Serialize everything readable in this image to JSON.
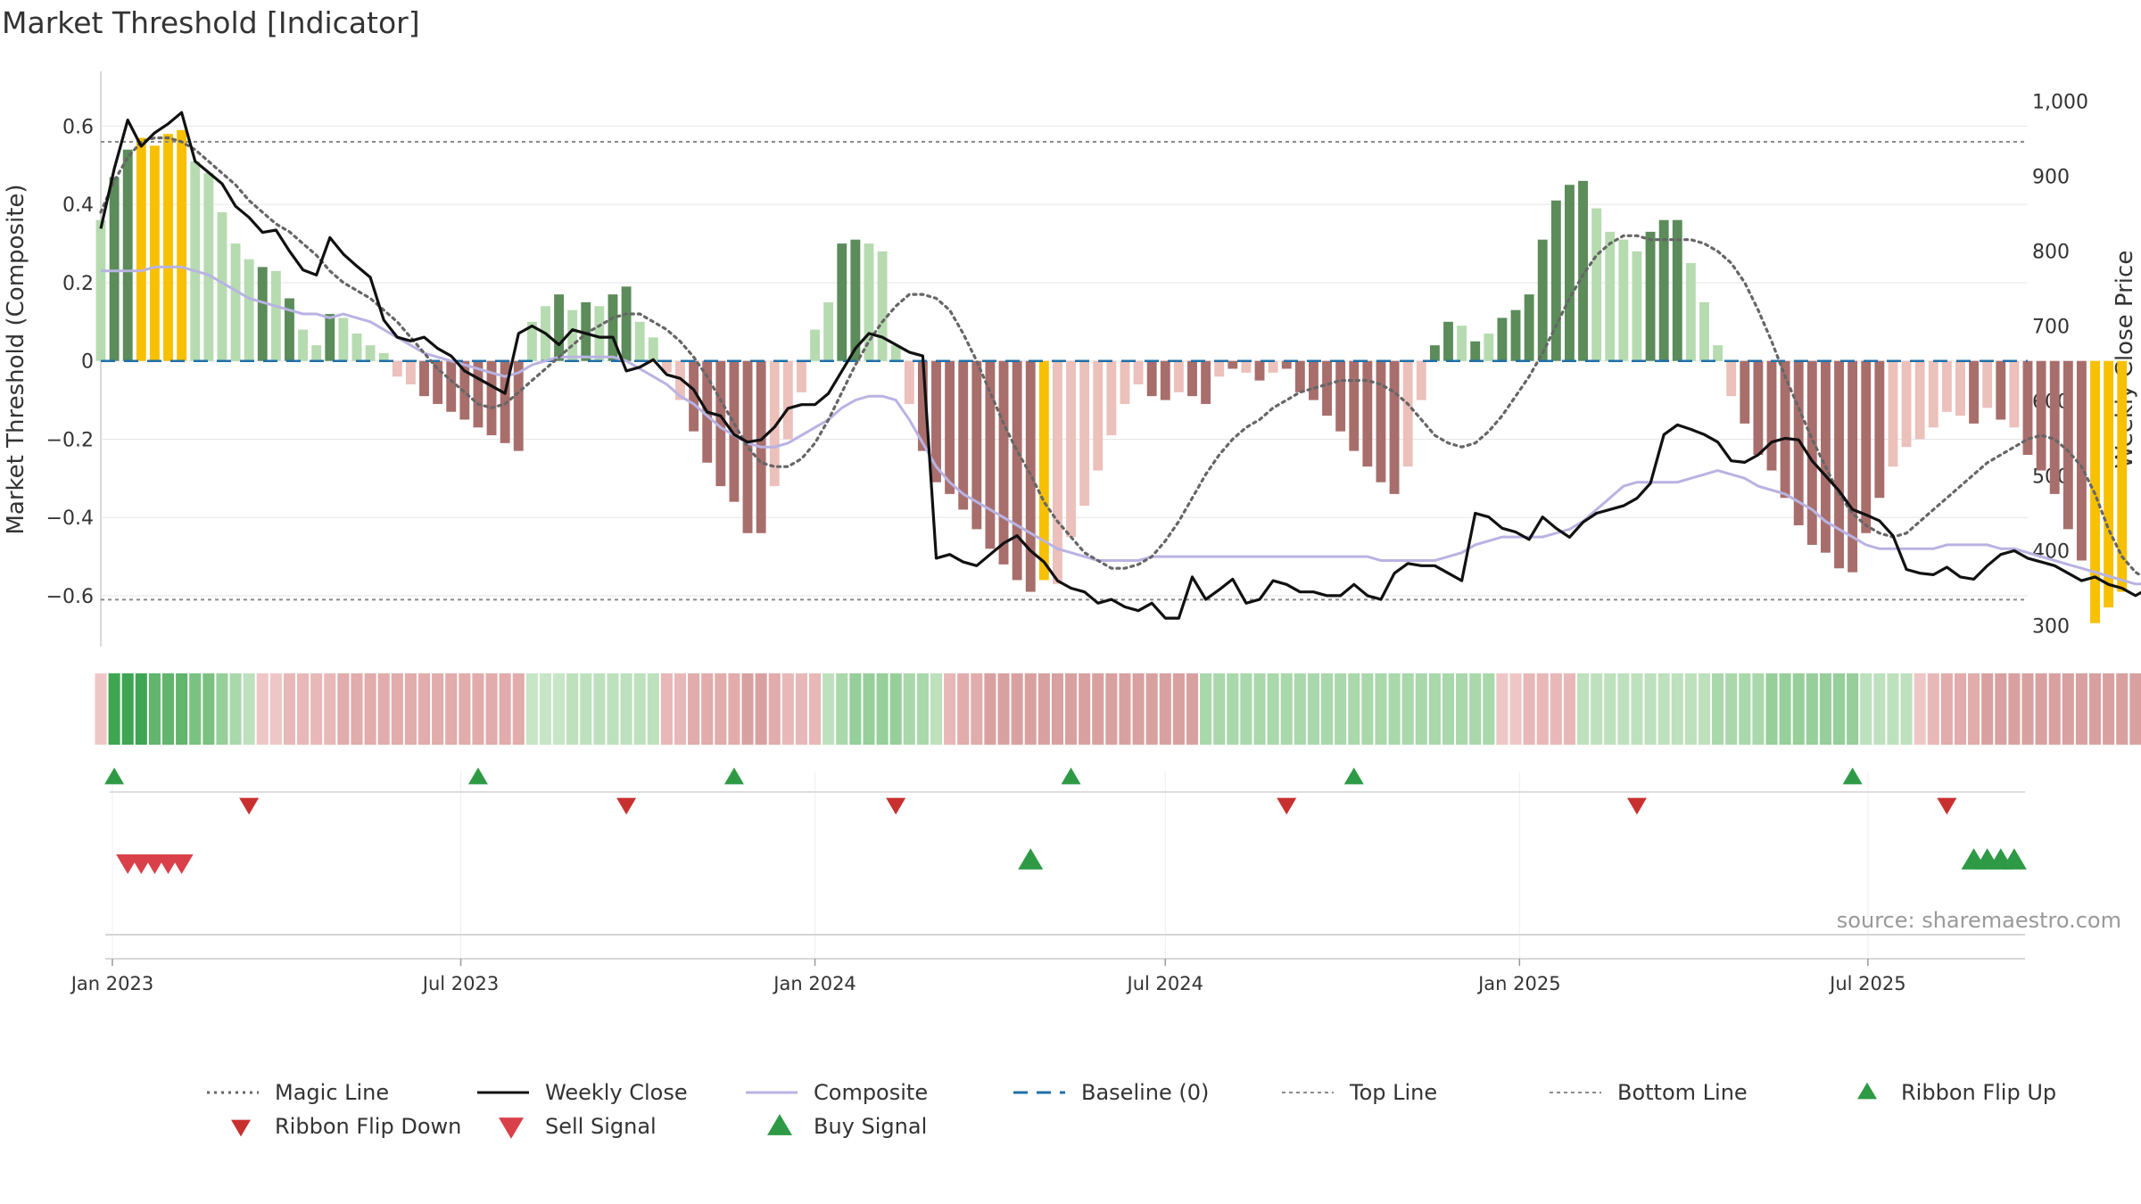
{
  "title": "Market Threshold [Indicator]",
  "source": "source: sharemaestro.com",
  "colors": {
    "bar_strong_up": "#5b8c5a",
    "bar_weak_up": "#b6dbb0",
    "bar_strong_down": "#a86e6c",
    "bar_weak_down": "#ecc0bb",
    "bar_extreme": "#f7c000",
    "magic": "#666666",
    "close": "#111111",
    "composite": "#b9b3e3",
    "baseline": "#1f6fa8",
    "buy": "#2e9a46",
    "sell": "#d9404a",
    "flip_up": "#2e9a46",
    "flip_down": "#c8302f"
  },
  "chart_data": {
    "type": "bar",
    "xlim": [
      "2022-12-26",
      "2025-09-22"
    ],
    "x_ticks": [
      "Jan 2023",
      "Jul 2023",
      "Jan 2024",
      "Jul 2024",
      "Jan 2025",
      "Jul 2025"
    ],
    "ylabel": "Market Threshold (Composite)",
    "y2label": "Weekly Close Price",
    "ylim": [
      -0.73,
      0.74
    ],
    "y_ticks": [
      0.6,
      0.4,
      0.2,
      0,
      -0.2,
      -0.4,
      -0.6
    ],
    "y2lim": [
      272,
      1040
    ],
    "y2_ticks": [
      300,
      400,
      500,
      600,
      700,
      800,
      900,
      1000
    ],
    "y2_tick_labels": [
      "300",
      "400",
      "500",
      "600",
      "700",
      "800",
      "900",
      "1,000"
    ],
    "top_line": 0.56,
    "bottom_line": -0.61,
    "composite_bars": [
      0.36,
      0.47,
      0.54,
      0.57,
      0.55,
      0.58,
      0.59,
      0.51,
      0.48,
      0.38,
      0.3,
      0.26,
      0.24,
      0.23,
      0.16,
      0.08,
      0.04,
      0.12,
      0.11,
      0.07,
      0.04,
      0.02,
      -0.04,
      -0.06,
      -0.09,
      -0.11,
      -0.13,
      -0.15,
      -0.17,
      -0.19,
      -0.21,
      -0.23,
      0.1,
      0.14,
      0.17,
      0.13,
      0.15,
      0.14,
      0.17,
      0.19,
      0.1,
      0.06,
      -0.03,
      -0.1,
      -0.18,
      -0.26,
      -0.32,
      -0.36,
      -0.44,
      -0.44,
      -0.32,
      -0.2,
      -0.08,
      0.08,
      0.15,
      0.3,
      0.31,
      0.3,
      0.28,
      0.04,
      -0.11,
      -0.23,
      -0.31,
      -0.34,
      -0.38,
      -0.43,
      -0.48,
      -0.52,
      -0.56,
      -0.59,
      -0.56,
      -0.57,
      -0.45,
      -0.37,
      -0.28,
      -0.19,
      -0.11,
      -0.06,
      -0.09,
      -0.1,
      -0.08,
      -0.09,
      -0.11,
      -0.04,
      -0.02,
      -0.03,
      -0.05,
      -0.03,
      -0.02,
      -0.08,
      -0.1,
      -0.14,
      -0.18,
      -0.23,
      -0.27,
      -0.31,
      -0.34,
      -0.27,
      -0.1,
      0.04,
      0.1,
      0.09,
      0.05,
      0.07,
      0.11,
      0.13,
      0.17,
      0.31,
      0.41,
      0.45,
      0.46,
      0.39,
      0.33,
      0.31,
      0.28,
      0.33,
      0.36,
      0.36,
      0.25,
      0.15,
      0.04,
      -0.09,
      -0.16,
      -0.24,
      -0.28,
      -0.35,
      -0.42,
      -0.47,
      -0.49,
      -0.53,
      -0.54,
      -0.44,
      -0.35,
      -0.27,
      -0.22,
      -0.2,
      -0.17,
      -0.13,
      -0.14,
      -0.16,
      -0.12,
      -0.15,
      -0.17,
      -0.24,
      -0.28,
      -0.34,
      -0.43,
      -0.51,
      -0.67,
      -0.63,
      -0.59
    ],
    "bar_categories": [
      "sw",
      "su",
      "su",
      "x",
      "x",
      "x",
      "x",
      "wu",
      "wu",
      "wu",
      "wu",
      "wu",
      "su",
      "wu",
      "su",
      "wu",
      "wu",
      "su",
      "wu",
      "wu",
      "wu",
      "wu",
      "wd",
      "wd",
      "sd",
      "sd",
      "sd",
      "sd",
      "sd",
      "sd",
      "sd",
      "sd",
      "wu",
      "wu",
      "su",
      "wu",
      "su",
      "wu",
      "su",
      "su",
      "wu",
      "wu",
      "wd",
      "wd",
      "sd",
      "sd",
      "sd",
      "sd",
      "sd",
      "sd",
      "wd",
      "wd",
      "wd",
      "wu",
      "wu",
      "su",
      "su",
      "wu",
      "wu",
      "wu",
      "wd",
      "sd",
      "sd",
      "sd",
      "sd",
      "sd",
      "sd",
      "sd",
      "sd",
      "sd",
      "x",
      "wd",
      "wd",
      "wd",
      "wd",
      "wd",
      "wd",
      "wd",
      "sd",
      "sd",
      "wd",
      "sd",
      "sd",
      "wd",
      "sd",
      "wd",
      "sd",
      "wd",
      "sd",
      "sd",
      "sd",
      "sd",
      "sd",
      "sd",
      "sd",
      "sd",
      "sd",
      "wd",
      "wd",
      "su",
      "su",
      "wu",
      "su",
      "wu",
      "su",
      "su",
      "su",
      "su",
      "su",
      "su",
      "su",
      "wu",
      "wu",
      "wu",
      "wu",
      "su",
      "su",
      "su",
      "wu",
      "wu",
      "wu",
      "wd",
      "sd",
      "sd",
      "sd",
      "sd",
      "sd",
      "sd",
      "sd",
      "sd",
      "sd",
      "sd",
      "sd",
      "wd",
      "wd",
      "wd",
      "wd",
      "wd",
      "wd",
      "sd",
      "wd",
      "sd",
      "wd",
      "sd",
      "sd",
      "sd",
      "sd",
      "sd",
      "x",
      "x",
      "x"
    ],
    "weekly_close": [
      830,
      910,
      975,
      940,
      958,
      970,
      985,
      920,
      905,
      890,
      860,
      845,
      825,
      828,
      800,
      775,
      768,
      818,
      796,
      780,
      765,
      708,
      685,
      680,
      685,
      670,
      660,
      640,
      630,
      620,
      610,
      690,
      700,
      690,
      675,
      695,
      690,
      685,
      685,
      640,
      645,
      655,
      635,
      630,
      615,
      585,
      580,
      555,
      545,
      548,
      565,
      590,
      595,
      595,
      610,
      640,
      670,
      690,
      685,
      675,
      665,
      660,
      390,
      395,
      385,
      380,
      395,
      410,
      420,
      400,
      385,
      360,
      350,
      345,
      330,
      335,
      325,
      320,
      330,
      310,
      310,
      365,
      335,
      348,
      362,
      330,
      335,
      360,
      355,
      345,
      345,
      340,
      340,
      355,
      340,
      335,
      370,
      383,
      380,
      380,
      370,
      360,
      450,
      445,
      430,
      425,
      415,
      445,
      430,
      418,
      438,
      450,
      455,
      460,
      470,
      490,
      555,
      568,
      562,
      555,
      545,
      520,
      518,
      528,
      545,
      550,
      548,
      520,
      500,
      480,
      455,
      448,
      440,
      420,
      375,
      370,
      368,
      378,
      365,
      362,
      380,
      395,
      400,
      390,
      385,
      380,
      370,
      360,
      365,
      355,
      350,
      340,
      350,
      342,
      335,
      350,
      345
    ]
  },
  "composite_line": [
    0.23,
    0.23,
    0.23,
    0.23,
    0.24,
    0.24,
    0.24,
    0.23,
    0.22,
    0.2,
    0.18,
    0.16,
    0.15,
    0.14,
    0.13,
    0.12,
    0.12,
    0.11,
    0.12,
    0.11,
    0.1,
    0.08,
    0.06,
    0.04,
    0.02,
    0.01,
    0.0,
    -0.01,
    -0.02,
    -0.03,
    -0.04,
    -0.03,
    -0.01,
    0.0,
    0.01,
    0.01,
    0.01,
    0.01,
    0.01,
    0.0,
    -0.02,
    -0.04,
    -0.06,
    -0.09,
    -0.11,
    -0.14,
    -0.17,
    -0.19,
    -0.21,
    -0.22,
    -0.22,
    -0.21,
    -0.19,
    -0.17,
    -0.15,
    -0.12,
    -0.1,
    -0.09,
    -0.09,
    -0.1,
    -0.15,
    -0.21,
    -0.27,
    -0.31,
    -0.34,
    -0.36,
    -0.38,
    -0.4,
    -0.42,
    -0.44,
    -0.46,
    -0.48,
    -0.49,
    -0.5,
    -0.51,
    -0.51,
    -0.51,
    -0.51,
    -0.5,
    -0.5,
    -0.5,
    -0.5,
    -0.5,
    -0.5,
    -0.5,
    -0.5,
    -0.5,
    -0.5,
    -0.5,
    -0.5,
    -0.5,
    -0.5,
    -0.5,
    -0.5,
    -0.5,
    -0.51,
    -0.51,
    -0.51,
    -0.51,
    -0.51,
    -0.5,
    -0.49,
    -0.47,
    -0.46,
    -0.45,
    -0.45,
    -0.45,
    -0.45,
    -0.44,
    -0.43,
    -0.41,
    -0.38,
    -0.35,
    -0.32,
    -0.31,
    -0.31,
    -0.31,
    -0.31,
    -0.3,
    -0.29,
    -0.28,
    -0.29,
    -0.3,
    -0.32,
    -0.33,
    -0.34,
    -0.36,
    -0.38,
    -0.41,
    -0.43,
    -0.45,
    -0.47,
    -0.48,
    -0.48,
    -0.48,
    -0.48,
    -0.48,
    -0.47,
    -0.47,
    -0.47,
    -0.47,
    -0.48,
    -0.48,
    -0.49,
    -0.5,
    -0.51,
    -0.52,
    -0.53,
    -0.54,
    -0.55,
    -0.56,
    -0.57,
    -0.57,
    -0.57,
    -0.57
  ],
  "magic_line": [
    0.38,
    0.46,
    0.52,
    0.56,
    0.57,
    0.57,
    0.56,
    0.54,
    0.51,
    0.48,
    0.45,
    0.41,
    0.38,
    0.35,
    0.33,
    0.3,
    0.27,
    0.23,
    0.2,
    0.18,
    0.16,
    0.13,
    0.1,
    0.06,
    0.02,
    -0.02,
    -0.05,
    -0.08,
    -0.11,
    -0.12,
    -0.11,
    -0.08,
    -0.05,
    -0.02,
    0.01,
    0.04,
    0.07,
    0.09,
    0.11,
    0.12,
    0.12,
    0.1,
    0.08,
    0.05,
    0.01,
    -0.04,
    -0.1,
    -0.16,
    -0.22,
    -0.26,
    -0.27,
    -0.27,
    -0.25,
    -0.21,
    -0.15,
    -0.08,
    -0.01,
    0.05,
    0.1,
    0.14,
    0.17,
    0.17,
    0.16,
    0.13,
    0.07,
    0.0,
    -0.08,
    -0.16,
    -0.23,
    -0.29,
    -0.36,
    -0.41,
    -0.45,
    -0.49,
    -0.51,
    -0.53,
    -0.53,
    -0.52,
    -0.5,
    -0.46,
    -0.41,
    -0.35,
    -0.29,
    -0.24,
    -0.2,
    -0.17,
    -0.15,
    -0.12,
    -0.1,
    -0.08,
    -0.07,
    -0.06,
    -0.05,
    -0.05,
    -0.05,
    -0.06,
    -0.08,
    -0.11,
    -0.15,
    -0.19,
    -0.21,
    -0.22,
    -0.21,
    -0.18,
    -0.14,
    -0.09,
    -0.04,
    0.02,
    0.09,
    0.16,
    0.22,
    0.27,
    0.3,
    0.32,
    0.32,
    0.31,
    0.31,
    0.31,
    0.31,
    0.3,
    0.28,
    0.25,
    0.2,
    0.13,
    0.05,
    -0.04,
    -0.12,
    -0.2,
    -0.27,
    -0.34,
    -0.39,
    -0.42,
    -0.44,
    -0.45,
    -0.44,
    -0.41,
    -0.38,
    -0.35,
    -0.32,
    -0.29,
    -0.26,
    -0.24,
    -0.22,
    -0.2,
    -0.19,
    -0.2,
    -0.23,
    -0.27,
    -0.34,
    -0.43,
    -0.5,
    -0.54,
    -0.56
  ],
  "ribbon_colors": [
    "#efc6c6",
    "#3ea653",
    "#3ea653",
    "#3ea653",
    "#62b56c",
    "#62b56c",
    "#62b56c",
    "#7bc282",
    "#7bc282",
    "#96cf9a",
    "#a9d8ab",
    "#bde1bd",
    "#efc6c6",
    "#efc6c6",
    "#e8b8b8",
    "#e8b8b8",
    "#e8b8b8",
    "#e8b8b8",
    "#e1acab",
    "#e1acab",
    "#e1acab",
    "#e1acab",
    "#e1acab",
    "#e1acab",
    "#e1acab",
    "#e1acab",
    "#e1acab",
    "#e1acab",
    "#e1acab",
    "#e1acab",
    "#e1acab",
    "#e1acab",
    "#c6e6c5",
    "#c6e6c5",
    "#c6e6c5",
    "#bde1bd",
    "#bde1bd",
    "#bde1bd",
    "#bde1bd",
    "#bde1bd",
    "#bde1bd",
    "#bde1bd",
    "#e8b8b8",
    "#e8b8b8",
    "#e1acab",
    "#e1acab",
    "#e1acab",
    "#e1acab",
    "#d8a1a0",
    "#d8a1a0",
    "#e1acab",
    "#e8b8b8",
    "#e8b8b8",
    "#e8b8b8",
    "#bde1bd",
    "#a9d8ab",
    "#96cf9a",
    "#96cf9a",
    "#96cf9a",
    "#96cf9a",
    "#a9d8ab",
    "#a9d8ab",
    "#bde1bd",
    "#e8b8b8",
    "#e1acab",
    "#e1acab",
    "#d8a1a0",
    "#d8a1a0",
    "#d8a1a0",
    "#d8a1a0",
    "#d8a1a0",
    "#d8a1a0",
    "#d8a1a0",
    "#d8a1a0",
    "#d8a1a0",
    "#d8a1a0",
    "#d8a1a0",
    "#d8a1a0",
    "#d8a1a0",
    "#d8a1a0",
    "#d8a1a0",
    "#d8a1a0",
    "#a9d8ab",
    "#a9d8ab",
    "#a9d8ab",
    "#a9d8ab",
    "#a9d8ab",
    "#a9d8ab",
    "#a9d8ab",
    "#a9d8ab",
    "#a9d8ab",
    "#a9d8ab",
    "#a9d8ab",
    "#a9d8ab",
    "#a9d8ab",
    "#a9d8ab",
    "#a9d8ab",
    "#a9d8ab",
    "#a9d8ab",
    "#a9d8ab",
    "#a9d8ab",
    "#a9d8ab",
    "#a9d8ab",
    "#a9d8ab",
    "#efc6c6",
    "#efc6c6",
    "#e8b8b8",
    "#e8b8b8",
    "#e8b8b8",
    "#e8b8b8",
    "#bde1bd",
    "#bde1bd",
    "#bde1bd",
    "#bde1bd",
    "#bde1bd",
    "#bde1bd",
    "#bde1bd",
    "#bde1bd",
    "#bde1bd",
    "#bde1bd",
    "#a9d8ab",
    "#a9d8ab",
    "#a9d8ab",
    "#a9d8ab",
    "#96cf9a",
    "#96cf9a",
    "#96cf9a",
    "#96cf9a",
    "#96cf9a",
    "#96cf9a",
    "#96cf9a",
    "#bde1bd",
    "#bde1bd",
    "#bde1bd",
    "#bde1bd",
    "#efc6c6",
    "#e8b8b8",
    "#e1acab",
    "#e1acab",
    "#e1acab",
    "#d8a1a0",
    "#d8a1a0",
    "#d8a1a0",
    "#d8a1a0",
    "#d8a1a0",
    "#d8a1a0",
    "#d8a1a0",
    "#d8a1a0",
    "#d8a1a0",
    "#d8a1a0",
    "#d8a1a0",
    "#d8a1a0",
    "#d8a1a0",
    "#e1acab"
  ],
  "ribbon_flip_up": [
    "2023-01-02",
    "2023-07-10",
    "2023-11-20",
    "2024-05-13",
    "2024-10-07",
    "2025-06-23"
  ],
  "ribbon_flip_down": [
    "2023-03-13",
    "2023-09-25",
    "2024-02-12",
    "2024-09-02",
    "2025-03-03",
    "2025-08-11"
  ],
  "sell_signals": [
    "2023-01-09",
    "2023-01-16",
    "2023-01-23",
    "2023-01-30",
    "2023-02-06"
  ],
  "buy_signals": [
    "2024-04-22",
    "2025-08-25",
    "2025-09-01",
    "2025-09-08",
    "2025-09-15"
  ],
  "legend": [
    {
      "label": "Magic Line",
      "kind": "dotted",
      "color": "#666666"
    },
    {
      "label": "Weekly Close",
      "kind": "solid",
      "color": "#111111"
    },
    {
      "label": "Composite",
      "kind": "solid",
      "color": "#b9b3e3"
    },
    {
      "label": "Baseline (0)",
      "kind": "dashed",
      "color": "#1f6fa8"
    },
    {
      "label": "Top Line",
      "kind": "dotted-thin",
      "color": "#8a8a8a"
    },
    {
      "label": "Bottom Line",
      "kind": "dotted-thin",
      "color": "#8a8a8a"
    },
    {
      "label": "Ribbon Flip Up",
      "kind": "tri-up",
      "color": "#2e9a46"
    },
    {
      "label": "Ribbon Flip Down",
      "kind": "tri-down",
      "color": "#c8302f"
    },
    {
      "label": "Sell Signal",
      "kind": "tri-down-big",
      "color": "#d9404a"
    },
    {
      "label": "Buy Signal",
      "kind": "tri-up-big",
      "color": "#2e9a46"
    }
  ]
}
